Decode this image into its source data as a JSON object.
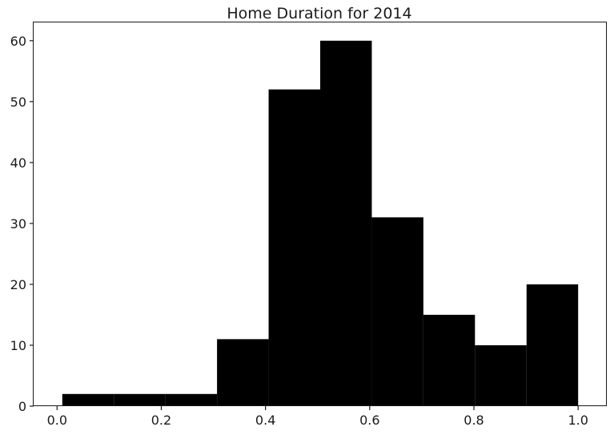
{
  "chart_data": {
    "type": "bar",
    "title": "Home Duration for 2014",
    "xlabel": "",
    "ylabel": "",
    "bins": [
      {
        "x0": 0.01,
        "x1": 0.109,
        "value": 2
      },
      {
        "x0": 0.109,
        "x1": 0.208,
        "value": 2
      },
      {
        "x0": 0.208,
        "x1": 0.307,
        "value": 2
      },
      {
        "x0": 0.307,
        "x1": 0.406,
        "value": 11
      },
      {
        "x0": 0.406,
        "x1": 0.505,
        "value": 52
      },
      {
        "x0": 0.505,
        "x1": 0.604,
        "value": 60
      },
      {
        "x0": 0.604,
        "x1": 0.703,
        "value": 31
      },
      {
        "x0": 0.703,
        "x1": 0.802,
        "value": 15
      },
      {
        "x0": 0.802,
        "x1": 0.901,
        "value": 10
      },
      {
        "x0": 0.901,
        "x1": 1.0,
        "value": 20
      }
    ],
    "xlim": [
      -0.045,
      1.055
    ],
    "ylim": [
      0,
      63
    ],
    "xticks": [
      0.0,
      0.2,
      0.4,
      0.6,
      0.8,
      1.0
    ],
    "xtick_labels": [
      "0.0",
      "0.2",
      "0.4",
      "0.6",
      "0.8",
      "1.0"
    ],
    "yticks": [
      0,
      10,
      20,
      30,
      40,
      50,
      60
    ],
    "ytick_labels": [
      "0",
      "10",
      "20",
      "30",
      "40",
      "50",
      "60"
    ],
    "bar_color": "#000000",
    "grid": false,
    "legend": false
  }
}
